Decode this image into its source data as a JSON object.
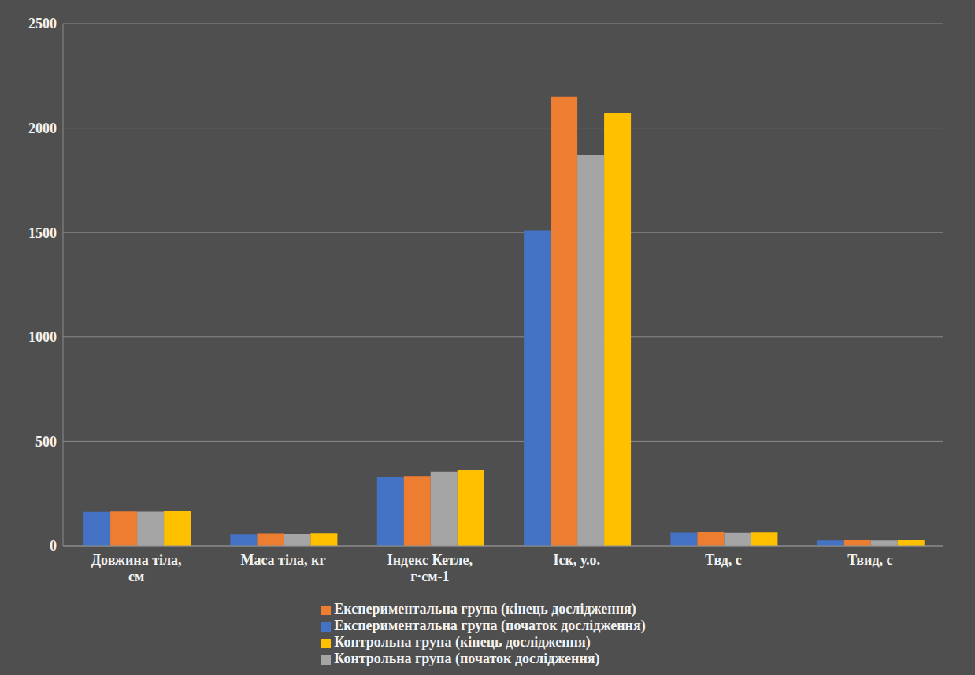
{
  "chart_data": {
    "type": "bar",
    "categories": [
      "Довжина тіла, см",
      "Маса тіла, кг",
      "Індекс Кетле, г·см-1",
      "Іск, у.о.",
      "Твд, с",
      "Твид, с"
    ],
    "series": [
      {
        "name": "Експериментальна група (початок дослідження)",
        "color": "#4472c4",
        "values": [
          163,
          56,
          330,
          1510,
          62,
          25
        ]
      },
      {
        "name": "Експериментальна група (кінець дослідження)",
        "color": "#ed7d31",
        "values": [
          165,
          58,
          335,
          2150,
          66,
          30
        ]
      },
      {
        "name": "Контрольна група (початок дослідження)",
        "color": "#a5a5a5",
        "values": [
          164,
          57,
          355,
          1870,
          61,
          25
        ]
      },
      {
        "name": "Контрольна група (кінець дослідження)",
        "color": "#ffc000",
        "values": [
          166,
          59,
          362,
          2070,
          63,
          28
        ]
      }
    ],
    "ylim": [
      0,
      2500
    ],
    "yticks": [
      0,
      500,
      1000,
      1500,
      2000,
      2500
    ],
    "grid": true,
    "legend": "bottom"
  }
}
